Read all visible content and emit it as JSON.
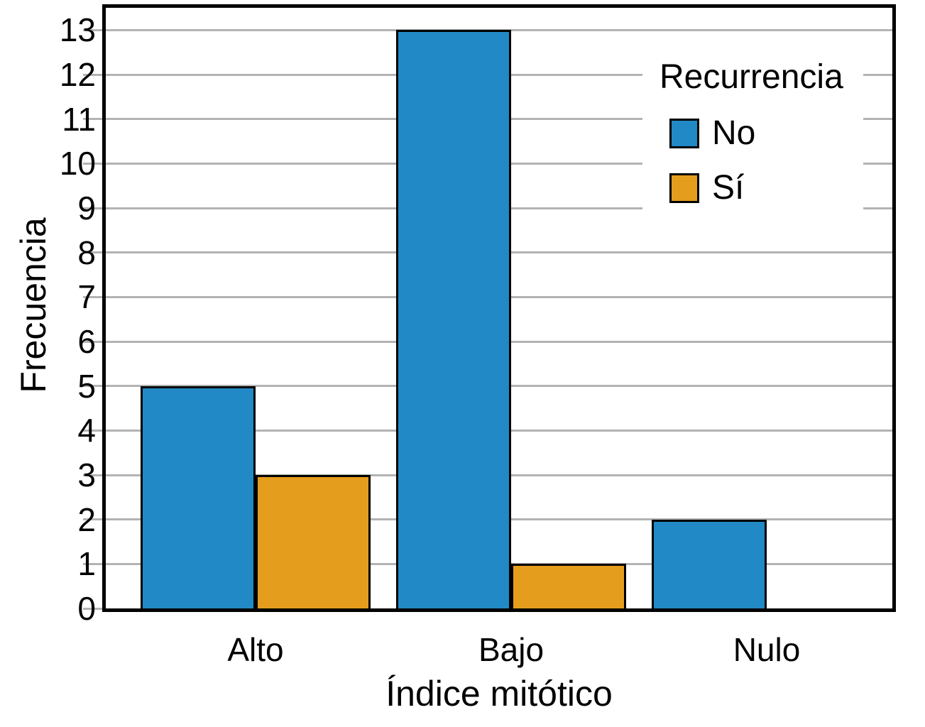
{
  "chart_data": {
    "type": "bar",
    "title": "",
    "xlabel": "Índice mitótico",
    "ylabel": "Frecuencia",
    "categories": [
      "Alto",
      "Bajo",
      "Nulo"
    ],
    "series": [
      {
        "name": "No",
        "color": "#2189c5",
        "values": [
          5,
          13,
          2
        ]
      },
      {
        "name": "Sí",
        "color": "#e59d1e",
        "values": [
          3,
          1,
          0
        ]
      }
    ],
    "legend_title": "Recurrencia",
    "legend_position": "upper-right-inside",
    "ylim": [
      0,
      13.5
    ],
    "yticks": [
      0,
      1,
      2,
      3,
      4,
      5,
      6,
      7,
      8,
      9,
      10,
      11,
      12,
      13
    ],
    "grid": "horizontal",
    "grid_color": "#b3b3b3",
    "bar_edge_color": "#000000",
    "frame_color": "#000000",
    "background_color": "#ffffff"
  }
}
